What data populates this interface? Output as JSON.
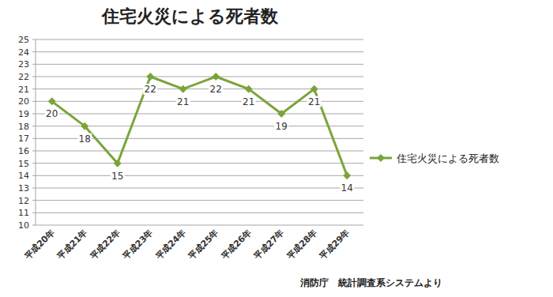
{
  "chart_data": {
    "type": "line",
    "title": "住宅火災による死者数",
    "categories": [
      "平成20年",
      "平成21年",
      "平成22年",
      "平成23年",
      "平成24年",
      "平成25年",
      "平成26年",
      "平成27年",
      "平成28年",
      "平成29年"
    ],
    "series": [
      {
        "name": "住宅火災による死者数",
        "color": "#7aa43a",
        "values": [
          20,
          18,
          15,
          22,
          21,
          22,
          21,
          19,
          21,
          14
        ],
        "marker": "diamond"
      }
    ],
    "ylim": [
      10,
      25
    ],
    "yticks": [
      10,
      11,
      12,
      13,
      14,
      15,
      16,
      17,
      18,
      19,
      20,
      21,
      22,
      23,
      24,
      25
    ],
    "grid": true,
    "legend": "right",
    "data_labels": true,
    "source": "消防庁　統計調査系システムより"
  }
}
